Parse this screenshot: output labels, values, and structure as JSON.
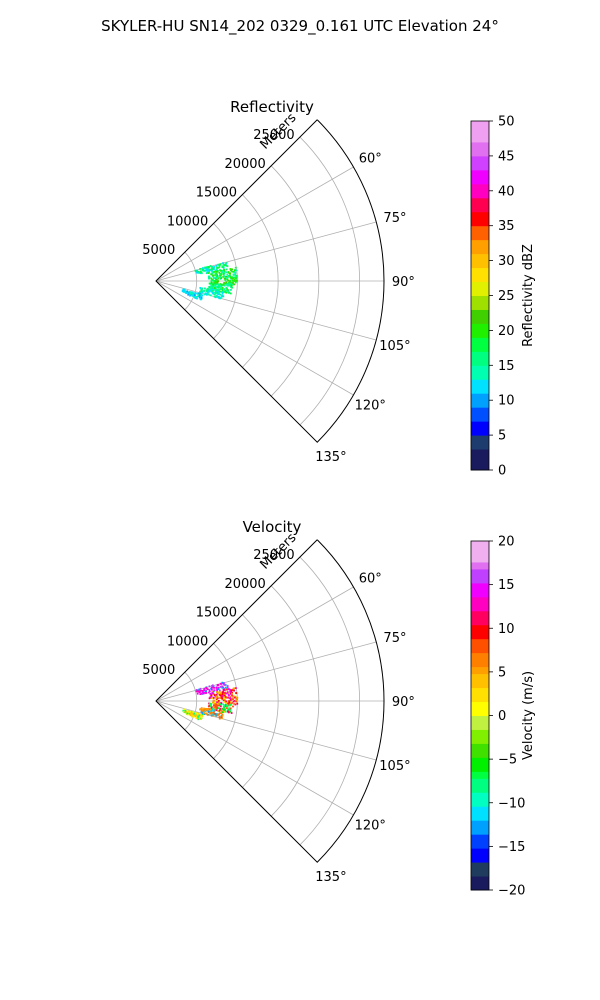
{
  "figure": {
    "suptitle": "SKYLER-HU  SN14_202  0329_0.161 UTC Elevation 24°"
  },
  "chart_data": [
    {
      "type": "scatter",
      "subtype": "polar-sector-radar-ppi",
      "title": "Reflectivity",
      "radial_label": "Meters",
      "radial_ticks": [
        5000,
        10000,
        15000,
        20000,
        25000
      ],
      "radial_tick_labels": [
        "5000",
        "10000",
        "15000",
        "20000",
        "25000"
      ],
      "rlim": [
        0,
        28000
      ],
      "theta_ticks_deg": [
        60,
        75,
        90,
        105,
        120,
        135
      ],
      "theta_tick_labels": [
        "60°",
        "75°",
        "90°",
        "105°",
        "120°",
        "135°"
      ],
      "theta_range_deg": [
        45,
        135
      ],
      "grid": true,
      "colorbar": {
        "label": "Reflectivity dBZ",
        "vmin": 0,
        "vmax": 50,
        "ticks": [
          0,
          5,
          10,
          15,
          20,
          25,
          30,
          35,
          40,
          45,
          50
        ],
        "tick_labels": [
          "0",
          "5",
          "10",
          "15",
          "20",
          "25",
          "30",
          "35",
          "40",
          "45",
          "50"
        ],
        "colormap": "pyart_NWSRef"
      },
      "echo_regions": [
        {
          "az_deg": 78,
          "r_min": 5000,
          "r_max": 9000,
          "values": [
            12,
            16,
            18
          ]
        },
        {
          "az_deg": 84,
          "r_min": 6500,
          "r_max": 10000,
          "values": [
            14,
            17,
            19,
            21
          ]
        },
        {
          "az_deg": 90,
          "r_min": 6800,
          "r_max": 10000,
          "values": [
            15,
            18,
            20,
            22
          ]
        },
        {
          "az_deg": 96,
          "r_min": 6500,
          "r_max": 9500,
          "values": [
            14,
            17,
            20
          ]
        },
        {
          "az_deg": 102,
          "r_min": 5500,
          "r_max": 8500,
          "values": [
            12,
            14,
            16
          ]
        },
        {
          "az_deg": 110,
          "r_min": 3500,
          "r_max": 6000,
          "values": [
            11,
            13
          ]
        }
      ]
    },
    {
      "type": "scatter",
      "subtype": "polar-sector-radar-ppi",
      "title": "Velocity",
      "radial_label": "Meters",
      "radial_ticks": [
        5000,
        10000,
        15000,
        20000,
        25000
      ],
      "radial_tick_labels": [
        "5000",
        "10000",
        "15000",
        "20000",
        "25000"
      ],
      "rlim": [
        0,
        28000
      ],
      "theta_ticks_deg": [
        60,
        75,
        90,
        105,
        120,
        135
      ],
      "theta_tick_labels": [
        "60°",
        "75°",
        "90°",
        "105°",
        "120°",
        "135°"
      ],
      "theta_range_deg": [
        45,
        135
      ],
      "grid": true,
      "colorbar": {
        "label": "Velocity (m/s)",
        "vmin": -20,
        "vmax": 20,
        "ticks": [
          -20,
          -15,
          -10,
          -5,
          0,
          5,
          10,
          15,
          20
        ],
        "tick_labels": [
          "−20",
          "−15",
          "−10",
          "−5",
          "0",
          "5",
          "10",
          "15",
          "20"
        ],
        "colormap": "pyart_NWSVel"
      },
      "echo_regions": [
        {
          "az_deg": 78,
          "r_min": 5000,
          "r_max": 9000,
          "values": [
            13,
            15,
            14,
            -12
          ]
        },
        {
          "az_deg": 84,
          "r_min": 6500,
          "r_max": 10000,
          "values": [
            14,
            11,
            9,
            5
          ]
        },
        {
          "az_deg": 90,
          "r_min": 6800,
          "r_max": 10000,
          "values": [
            12,
            9,
            5,
            2
          ]
        },
        {
          "az_deg": 96,
          "r_min": 6500,
          "r_max": 9500,
          "values": [
            11,
            8,
            -6,
            -8
          ]
        },
        {
          "az_deg": 102,
          "r_min": 5500,
          "r_max": 8500,
          "values": [
            7,
            6,
            5,
            -12
          ]
        },
        {
          "az_deg": 110,
          "r_min": 3500,
          "r_max": 6000,
          "values": [
            3,
            1,
            -7
          ]
        }
      ]
    }
  ]
}
